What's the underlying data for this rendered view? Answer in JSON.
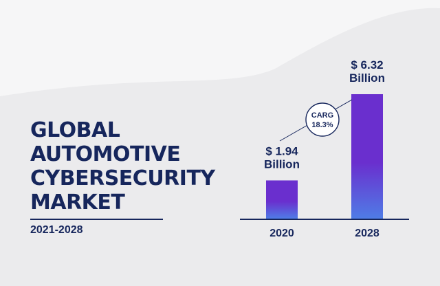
{
  "title_lines": [
    "GLOBAL",
    "AUTOMOTIVE",
    "CYBERSECURITY",
    "MARKET"
  ],
  "period": "2021-2028",
  "colors": {
    "navy": "#16265c",
    "bar_top": "#6a2fce",
    "bar_bottom": "#4f7ce6",
    "background": "#ebebed",
    "wave": "#f6f6f7"
  },
  "chart_data": {
    "type": "bar",
    "categories": [
      "2020",
      "2028"
    ],
    "values": [
      1.94,
      6.32
    ],
    "unit": "Billion",
    "value_labels": [
      {
        "line1": "$ 1.94",
        "line2": "Billion"
      },
      {
        "line1": "$ 6.32",
        "line2": "Billion"
      }
    ],
    "annotation": {
      "line1": "CARG",
      "line2": "18.3%"
    },
    "title": "",
    "xlabel": "",
    "ylabel": "",
    "ylim": [
      0,
      6.32
    ],
    "grid": false,
    "legend": "none"
  }
}
